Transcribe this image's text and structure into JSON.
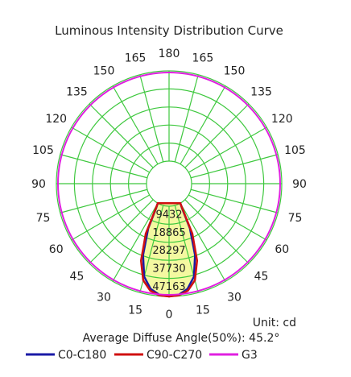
{
  "chart_data": {
    "type": "polar",
    "title": "Luminous Intensity Distribution Curve",
    "angle_labels": [
      {
        "text": "180",
        "deg": 0
      },
      {
        "text": "165",
        "deg": 15
      },
      {
        "text": "150",
        "deg": 30
      },
      {
        "text": "135",
        "deg": 45
      },
      {
        "text": "120",
        "deg": 60
      },
      {
        "text": "105",
        "deg": 75
      },
      {
        "text": "90",
        "deg": 90
      },
      {
        "text": "75",
        "deg": 105
      },
      {
        "text": "60",
        "deg": 120
      },
      {
        "text": "45",
        "deg": 135
      },
      {
        "text": "30",
        "deg": 150
      },
      {
        "text": "15",
        "deg": 165
      },
      {
        "text": "0",
        "deg": 180
      },
      {
        "text": "15",
        "deg": 195
      },
      {
        "text": "30",
        "deg": 210
      },
      {
        "text": "45",
        "deg": 225
      },
      {
        "text": "60",
        "deg": 240
      },
      {
        "text": "75",
        "deg": 255
      },
      {
        "text": "90",
        "deg": 270
      },
      {
        "text": "105",
        "deg": 285
      },
      {
        "text": "120",
        "deg": 300
      },
      {
        "text": "135",
        "deg": 315
      },
      {
        "text": "150",
        "deg": 330
      },
      {
        "text": "165",
        "deg": 345
      }
    ],
    "radial_ticks": [
      9432,
      18865,
      28297,
      37730,
      47163
    ],
    "r_max": 47163,
    "unit_label": "Unit: cd",
    "note": "Average Diffuse Angle(50%): 45.2°",
    "series": [
      {
        "name": "C0-C180",
        "color": "#1a1aa6",
        "r": [
          47163,
          46500,
          44000,
          38500,
          28000,
          14000,
          2500,
          0
        ]
      },
      {
        "name": "C90-C270",
        "color": "#d01010",
        "r": [
          47163,
          46800,
          45000,
          40500,
          31000,
          17000,
          3500,
          0
        ]
      },
      {
        "name": "G3",
        "color": "#e020e0",
        "r_const": 47163
      }
    ],
    "series_angles": [
      0,
      5,
      10,
      15,
      20,
      25,
      28,
      30
    ],
    "grid": true,
    "legend_position": "bottom"
  },
  "colors": {
    "grid": "#3ec83e",
    "fill": "#f4f8a0"
  }
}
